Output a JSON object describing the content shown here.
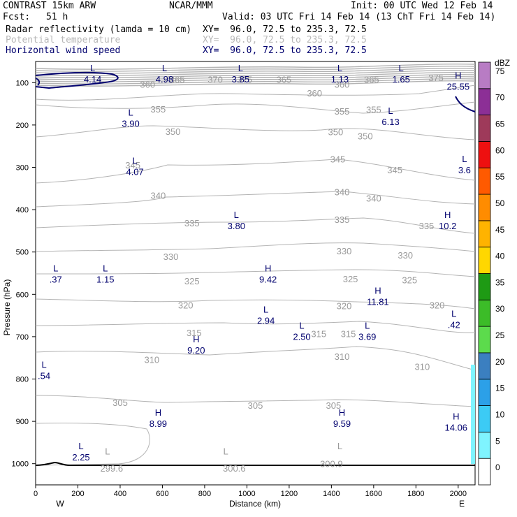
{
  "header": {
    "model": "CONTRAST 15km ARW",
    "org": "NCAR/MMM",
    "init": "Init: 00 UTC Wed 12 Feb 14",
    "fcst_label": "Fcst:",
    "fcst_value": "51 h",
    "valid": "Valid: 03 UTC Fri 14 Feb 14 (13 ChT Fri 14 Feb 14)",
    "line1_field": "Radar reflectivity (lamda = 10 cm)",
    "line1_xy": "XY=  96.0, 72.5 to 235.3, 72.5",
    "line2_field": "Potential temperature",
    "line2_xy": "XY=  96.0, 72.5 to 235.3, 72.5",
    "line3_field": "Horizontal wind speed",
    "line3_xy": "XY=  96.0, 72.5 to 235.3, 72.5"
  },
  "colors": {
    "theta": "#b4b4b4",
    "wind": "#00006e",
    "terrain": "#000000"
  },
  "chart_data": {
    "type": "cross-section",
    "xlabel": "Distance (km)",
    "ylabel": "Pressure (hPa)",
    "xlim": [
      0,
      2080
    ],
    "ylim": [
      1050,
      50
    ],
    "xticks": [
      0,
      200,
      400,
      600,
      800,
      1000,
      1200,
      1400,
      1600,
      1800,
      2000
    ],
    "yticks": [
      100,
      200,
      300,
      400,
      500,
      600,
      700,
      800,
      900,
      1000
    ],
    "west_label": "W",
    "east_label": "E",
    "theta_labels": [
      {
        "text": "360",
        "x": 530,
        "p": 104
      },
      {
        "text": "365",
        "x": 670,
        "p": 92
      },
      {
        "text": "370",
        "x": 850,
        "p": 92
      },
      {
        "text": "375",
        "x": 990,
        "p": 92
      },
      {
        "text": "365",
        "x": 1175,
        "p": 92
      },
      {
        "text": "360",
        "x": 1320,
        "p": 124
      },
      {
        "text": "360",
        "x": 1450,
        "p": 104
      },
      {
        "text": "365",
        "x": 1590,
        "p": 92
      },
      {
        "text": "375",
        "x": 1895,
        "p": 88
      },
      {
        "text": "355",
        "x": 580,
        "p": 162
      },
      {
        "text": "355",
        "x": 1450,
        "p": 167
      },
      {
        "text": "355",
        "x": 1600,
        "p": 163
      },
      {
        "text": "350",
        "x": 650,
        "p": 215
      },
      {
        "text": "350",
        "x": 1420,
        "p": 216
      },
      {
        "text": "350",
        "x": 1560,
        "p": 226
      },
      {
        "text": "345",
        "x": 460,
        "p": 294
      },
      {
        "text": "345",
        "x": 1430,
        "p": 280
      },
      {
        "text": "345",
        "x": 1700,
        "p": 306
      },
      {
        "text": "340",
        "x": 580,
        "p": 366
      },
      {
        "text": "340",
        "x": 1450,
        "p": 358
      },
      {
        "text": "340",
        "x": 1600,
        "p": 373
      },
      {
        "text": "335",
        "x": 740,
        "p": 431
      },
      {
        "text": "335",
        "x": 1450,
        "p": 423
      },
      {
        "text": "335",
        "x": 1850,
        "p": 438
      },
      {
        "text": "330",
        "x": 640,
        "p": 510
      },
      {
        "text": "330",
        "x": 1460,
        "p": 497
      },
      {
        "text": "330",
        "x": 1750,
        "p": 507
      },
      {
        "text": "325",
        "x": 740,
        "p": 568
      },
      {
        "text": "325",
        "x": 1490,
        "p": 563
      },
      {
        "text": "325",
        "x": 1770,
        "p": 566
      },
      {
        "text": "320",
        "x": 710,
        "p": 625
      },
      {
        "text": "320",
        "x": 1460,
        "p": 627
      },
      {
        "text": "320",
        "x": 1900,
        "p": 625
      },
      {
        "text": "315",
        "x": 750,
        "p": 690
      },
      {
        "text": "315",
        "x": 1340,
        "p": 693
      },
      {
        "text": "315",
        "x": 1480,
        "p": 693
      },
      {
        "text": "310",
        "x": 550,
        "p": 754
      },
      {
        "text": "310",
        "x": 1450,
        "p": 746
      },
      {
        "text": "310",
        "x": 1830,
        "p": 770
      },
      {
        "text": "305",
        "x": 400,
        "p": 855
      },
      {
        "text": "305",
        "x": 1040,
        "p": 862
      },
      {
        "text": "305",
        "x": 1410,
        "p": 862
      },
      {
        "text": "299.6",
        "x": 360,
        "p": 1010
      },
      {
        "text": "300.6",
        "x": 940,
        "p": 1010
      },
      {
        "text": "300.9",
        "x": 1400,
        "p": 1000
      }
    ],
    "theta_extrema": [
      {
        "mark": "L",
        "x": 340,
        "p": 988
      },
      {
        "mark": "L",
        "x": 900,
        "p": 988
      },
      {
        "mark": "L",
        "x": 1440,
        "p": 976
      }
    ],
    "wind_extrema": [
      {
        "mark": "L",
        "value": "4.14",
        "x": 270,
        "p": 90
      },
      {
        "mark": "L",
        "value": "4.98",
        "x": 610,
        "p": 90
      },
      {
        "mark": "L",
        "value": "3.85",
        "x": 970,
        "p": 90
      },
      {
        "mark": "L",
        "value": "1.13",
        "x": 1440,
        "p": 90
      },
      {
        "mark": "L",
        "value": "1.65",
        "x": 1730,
        "p": 90
      },
      {
        "mark": "H",
        "value": "25.55",
        "x": 2000,
        "p": 107
      },
      {
        "mark": "L",
        "value": "3.90",
        "x": 450,
        "p": 194
      },
      {
        "mark": "L",
        "value": "6.13",
        "x": 1680,
        "p": 190
      },
      {
        "mark": "L",
        "value": "3.6",
        "x": 2030,
        "p": 304
      },
      {
        "mark": "L",
        "value": "4.07",
        "x": 470,
        "p": 308
      },
      {
        "mark": "L",
        "value": "3.80",
        "x": 950,
        "p": 436
      },
      {
        "mark": "H",
        "value": "10.2",
        "x": 1950,
        "p": 436
      },
      {
        "mark": "L",
        "value": ".37",
        "x": 95,
        "p": 562
      },
      {
        "mark": "L",
        "value": "1.15",
        "x": 330,
        "p": 562
      },
      {
        "mark": "H",
        "value": "9.42",
        "x": 1100,
        "p": 562
      },
      {
        "mark": "H",
        "value": "11.81",
        "x": 1620,
        "p": 615
      },
      {
        "mark": "L",
        "value": "2.94",
        "x": 1090,
        "p": 660
      },
      {
        "mark": "L",
        "value": ".42",
        "x": 1980,
        "p": 670
      },
      {
        "mark": "L",
        "value": "2.50",
        "x": 1260,
        "p": 698
      },
      {
        "mark": "L",
        "value": "3.69",
        "x": 1570,
        "p": 698
      },
      {
        "mark": "H",
        "value": "9.20",
        "x": 760,
        "p": 730
      },
      {
        "mark": "L",
        "value": ".54",
        "x": 40,
        "p": 790
      },
      {
        "mark": "H",
        "value": "8.99",
        "x": 580,
        "p": 903
      },
      {
        "mark": "H",
        "value": "9.59",
        "x": 1450,
        "p": 903
      },
      {
        "mark": "H",
        "value": "14.06",
        "x": 1990,
        "p": 912
      },
      {
        "mark": "L",
        "value": "2.25",
        "x": 215,
        "p": 982
      }
    ],
    "colorbar": {
      "unit": "dBZ",
      "levels": [
        "0",
        "5",
        "10",
        "15",
        "20",
        "25",
        "30",
        "35",
        "40",
        "45",
        "50",
        "55",
        "60",
        "65",
        "70",
        "75"
      ],
      "colors": [
        "#ffffff",
        "#7ff4ff",
        "#3ccbf5",
        "#2ca0e8",
        "#3b7fc0",
        "#5cdb4c",
        "#3cbc28",
        "#1e9a14",
        "#ffd700",
        "#ffb300",
        "#ff8c00",
        "#ff5a00",
        "#ee1010",
        "#9e3a5a",
        "#8c2f96",
        "#b87cc4"
      ]
    }
  }
}
